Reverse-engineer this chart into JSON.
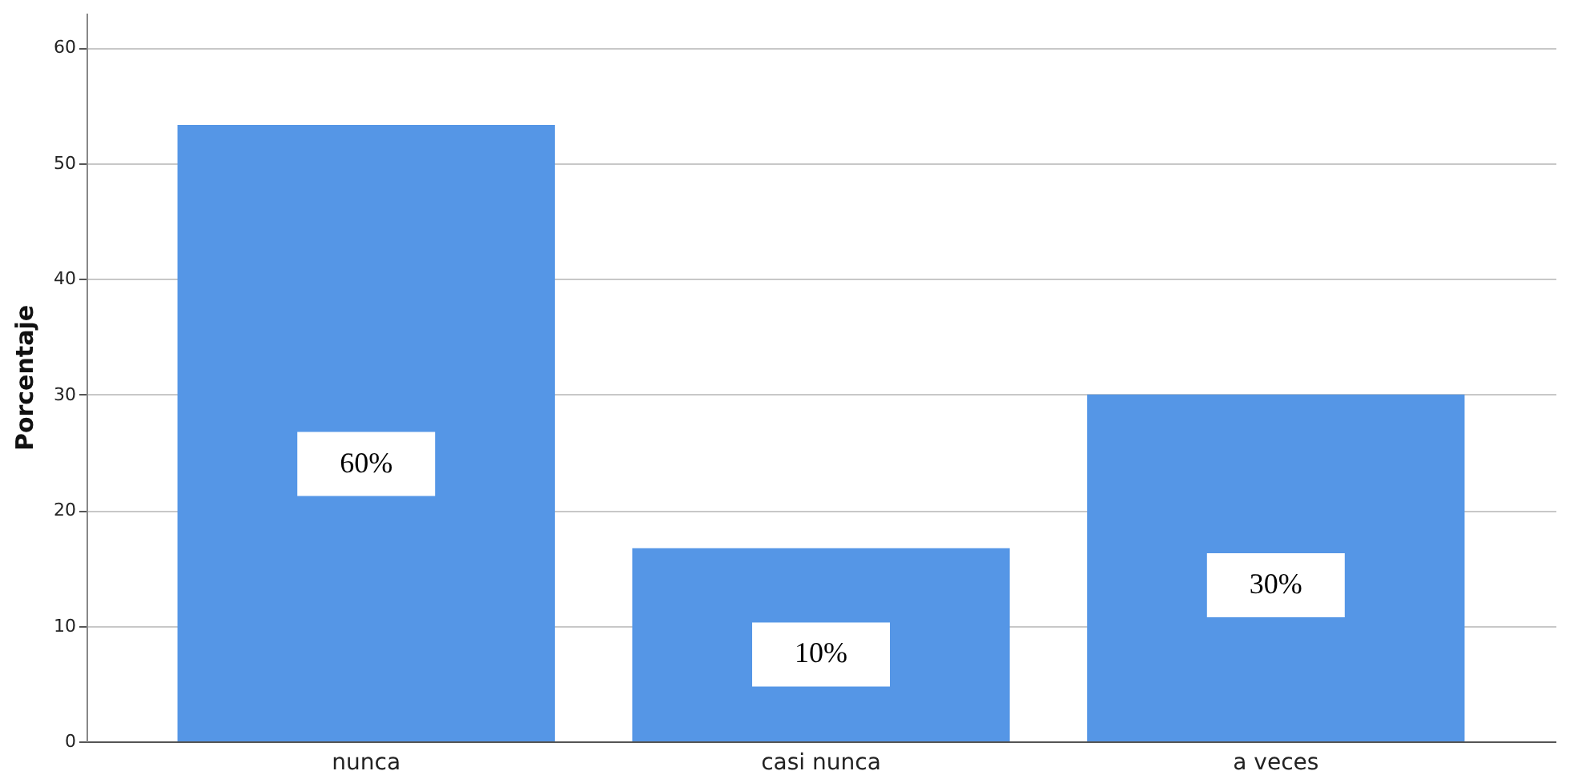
{
  "chart_data": {
    "type": "bar",
    "ylabel": "Porcentaje",
    "categories": [
      "nunca",
      "casi nunca",
      "a veces"
    ],
    "values": [
      53.3,
      16.7,
      30
    ],
    "annotations": [
      "60%",
      "10%",
      "30%"
    ],
    "color": "#5596e6",
    "ylim": [
      0,
      63
    ],
    "yticks": [
      0,
      10,
      20,
      30,
      40,
      50,
      60
    ],
    "grid": "y"
  }
}
